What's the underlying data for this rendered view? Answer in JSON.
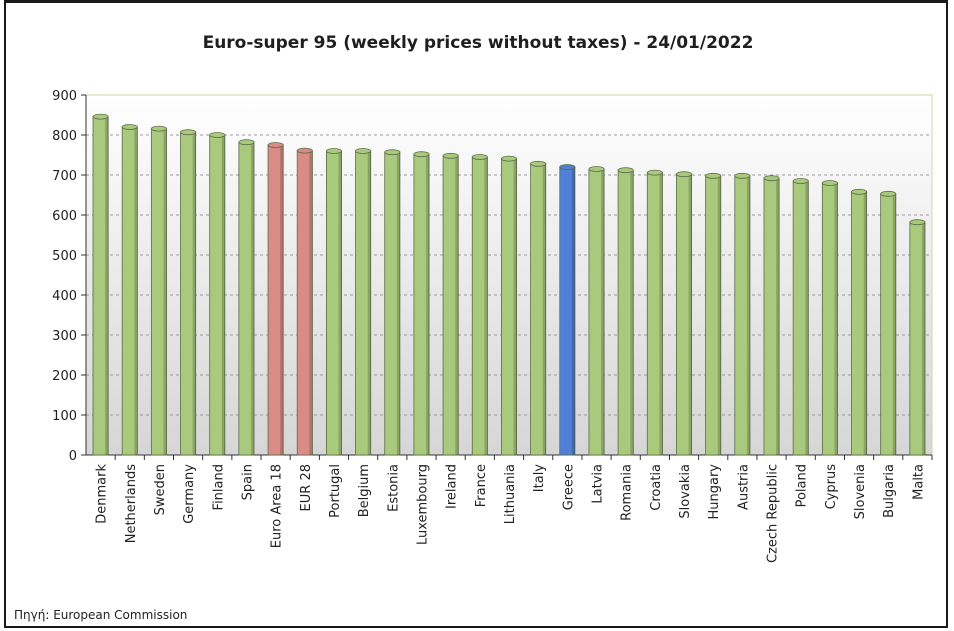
{
  "chart_data": {
    "type": "bar",
    "title": "Euro-super 95 (weekly prices without taxes) - 24/01/2022",
    "categories": [
      "Denmark",
      "Netherlands",
      "Sweden",
      "Germany",
      "Finland",
      "Spain",
      "Euro Area 18",
      "EUR 28",
      "Portugal",
      "Belgium",
      "Estonia",
      "Luxembourg",
      "Ireland",
      "France",
      "Lithuania",
      "Italy",
      "Greece",
      "Latvia",
      "Romania",
      "Croatia",
      "Slovakia",
      "Hungary",
      "Austria",
      "Czech Republic",
      "Poland",
      "Cyprus",
      "Slovenia",
      "Bulgaria",
      "Malta"
    ],
    "values": [
      846,
      820,
      816,
      807,
      800,
      782,
      775,
      761,
      760,
      760,
      757,
      752,
      748,
      745,
      741,
      728,
      720,
      715,
      712,
      706,
      702,
      698,
      698,
      692,
      685,
      680,
      658,
      653,
      582
    ],
    "bar_colors": [
      "#a9c97d",
      "#a9c97d",
      "#a9c97d",
      "#a9c97d",
      "#a9c97d",
      "#a9c97d",
      "#d98b86",
      "#d98b86",
      "#a9c97d",
      "#a9c97d",
      "#a9c97d",
      "#a9c97d",
      "#a9c97d",
      "#a9c97d",
      "#a9c97d",
      "#a9c97d",
      "#4f7fd6",
      "#a9c97d",
      "#a9c97d",
      "#a9c97d",
      "#a9c97d",
      "#a9c97d",
      "#a9c97d",
      "#a9c97d",
      "#a9c97d",
      "#a9c97d",
      "#a9c97d",
      "#a9c97d",
      "#a9c97d"
    ],
    "ylim": [
      0,
      900
    ],
    "yticks": [
      0,
      100,
      200,
      300,
      400,
      500,
      600,
      700,
      800,
      900
    ],
    "xlabel": "",
    "ylabel": "",
    "grid": true,
    "legend": "none"
  },
  "source": "Πηγή: European Commission"
}
